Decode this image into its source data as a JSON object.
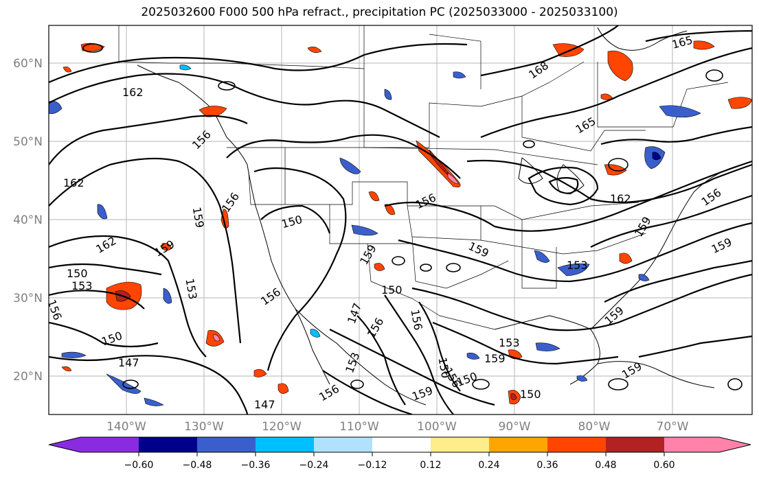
{
  "title": "2025032600 F000 500 hPa refract., precipitation PC (2025033000 - 2025033100)",
  "map": {
    "lat_labels": [
      "60°N",
      "50°N",
      "40°N",
      "30°N",
      "20°N"
    ],
    "lon_labels": [
      "140°W",
      "130°W",
      "120°W",
      "110°W",
      "100°W",
      "90°W",
      "80°W",
      "70°W"
    ],
    "contour_labels": [
      {
        "text": "162"
      },
      {
        "text": "162"
      },
      {
        "text": "156"
      },
      {
        "text": "159"
      },
      {
        "text": "156"
      },
      {
        "text": "150"
      },
      {
        "text": "150"
      },
      {
        "text": "153"
      },
      {
        "text": "156"
      },
      {
        "text": "150"
      },
      {
        "text": "147"
      },
      {
        "text": "162"
      },
      {
        "text": "159"
      },
      {
        "text": "156"
      },
      {
        "text": "147"
      },
      {
        "text": "150"
      },
      {
        "text": "156"
      },
      {
        "text": "153"
      },
      {
        "text": "159"
      },
      {
        "text": "156"
      },
      {
        "text": "159"
      },
      {
        "text": "159"
      },
      {
        "text": "153"
      },
      {
        "text": "156"
      },
      {
        "text": "156"
      },
      {
        "text": "153"
      },
      {
        "text": "162"
      },
      {
        "text": "168"
      },
      {
        "text": "165"
      },
      {
        "text": "165"
      },
      {
        "text": "159"
      },
      {
        "text": "159"
      },
      {
        "text": "159"
      },
      {
        "text": "156"
      },
      {
        "text": "153"
      },
      {
        "text": "159"
      },
      {
        "text": "159"
      },
      {
        "text": "150"
      },
      {
        "text": "150"
      },
      {
        "text": "156"
      },
      {
        "text": "150"
      },
      {
        "text": "147"
      }
    ]
  },
  "colorbar": {
    "ticks": [
      "−0.60",
      "−0.48",
      "−0.36",
      "−0.24",
      "−0.12",
      "0.12",
      "0.24",
      "0.36",
      "0.48",
      "0.60"
    ],
    "colors": [
      "#8a2be2",
      "#00008b",
      "#3a5fcd",
      "#00bfff",
      "#b0e2ff",
      "#ffffff",
      "#ffec8b",
      "#ffa500",
      "#ff4500",
      "#b22222",
      "#ff82ab",
      "#ff82ab"
    ]
  }
}
